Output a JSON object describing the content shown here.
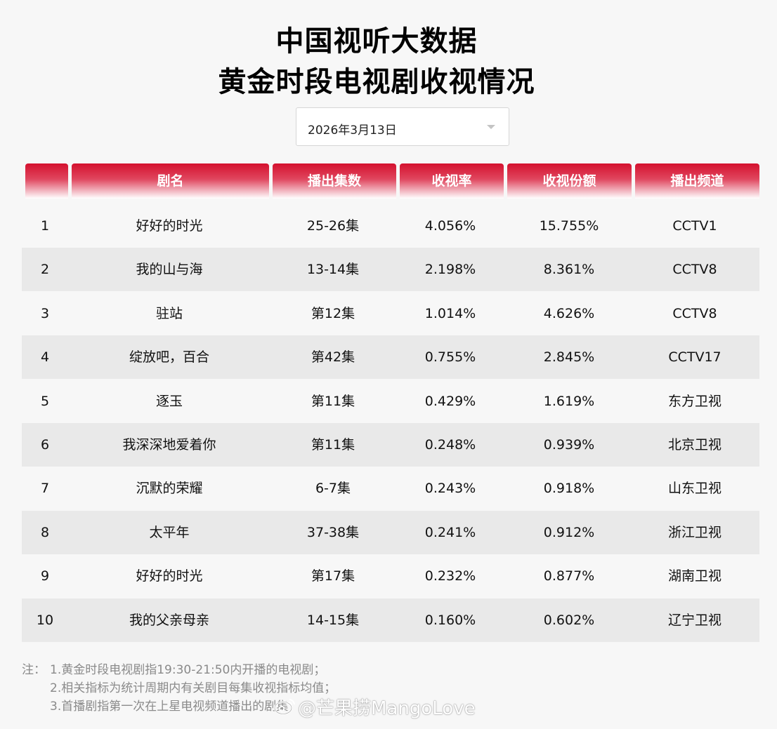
{
  "title_line1": "中国视听大数据",
  "title_line2": "黄金时段电视剧收视情况",
  "date_select": {
    "value": "2026年3月13日",
    "icon": "chevron-down-icon"
  },
  "colors": {
    "header_red": "#d4112e",
    "row_alt": "#e9e9e9",
    "background": "#f7f7f7"
  },
  "table": {
    "headers": [
      "",
      "剧名",
      "播出集数",
      "收视率",
      "收视份额",
      "播出频道"
    ],
    "rows": [
      [
        "1",
        "好好的时光",
        "25-26集",
        "4.056%",
        "15.755%",
        "CCTV1"
      ],
      [
        "2",
        "我的山与海",
        "13-14集",
        "2.198%",
        "8.361%",
        "CCTV8"
      ],
      [
        "3",
        "驻站",
        "第12集",
        "1.014%",
        "4.626%",
        "CCTV8"
      ],
      [
        "4",
        "绽放吧，百合",
        "第42集",
        "0.755%",
        "2.845%",
        "CCTV17"
      ],
      [
        "5",
        "逐玉",
        "第11集",
        "0.429%",
        "1.619%",
        "东方卫视"
      ],
      [
        "6",
        "我深深地爱着你",
        "第11集",
        "0.248%",
        "0.939%",
        "北京卫视"
      ],
      [
        "7",
        "沉默的荣耀",
        "6-7集",
        "0.243%",
        "0.918%",
        "山东卫视"
      ],
      [
        "8",
        "太平年",
        "37-38集",
        "0.241%",
        "0.912%",
        "浙江卫视"
      ],
      [
        "9",
        "好好的时光",
        "第17集",
        "0.232%",
        "0.877%",
        "湖南卫视"
      ],
      [
        "10",
        "我的父亲母亲",
        "14-15集",
        "0.160%",
        "0.602%",
        "辽宁卫视"
      ]
    ]
  },
  "notes": {
    "prefix": "注：",
    "lines": [
      "1.黄金时段电视剧指19:30-21:50内开播的电视剧；",
      "2.相关指标为统计周期内有关剧目每集收视指标均值；",
      "3.首播剧指第一次在上星电视频道播出的剧集"
    ]
  },
  "watermark": {
    "text": "@芒果捞MangoLove",
    "icon": "weibo-logo-icon"
  }
}
